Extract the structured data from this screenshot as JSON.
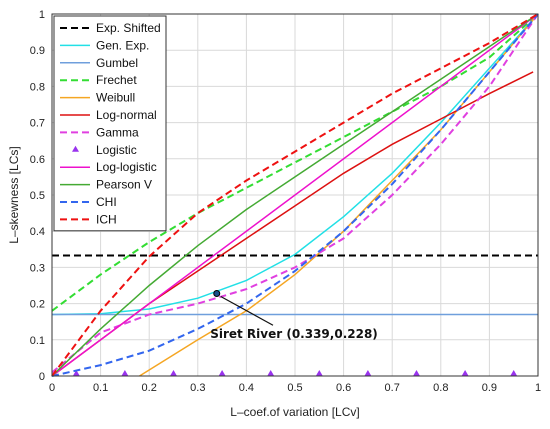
{
  "chart_data": {
    "type": "line",
    "xlabel": "L–coef.of variation [LCv]",
    "ylabel": "L–skewness [LCs]",
    "xlim": [
      0,
      1
    ],
    "ylim": [
      0,
      1
    ],
    "x_ticks": [
      "0",
      "0.1",
      "0.2",
      "0.3",
      "0.4",
      "0.5",
      "0.6",
      "0.7",
      "0.8",
      "0.9",
      "1"
    ],
    "y_ticks": [
      "0",
      "0.1",
      "0.2",
      "0.3",
      "0.4",
      "0.5",
      "0.6",
      "0.7",
      "0.8",
      "0.9",
      "1"
    ],
    "grid": true,
    "legend_position": "top-left",
    "series": [
      {
        "name": "Exp. Shifted",
        "color": "#000000",
        "dash": "dashed",
        "x": [
          0,
          1
        ],
        "y": [
          0.333,
          0.333
        ]
      },
      {
        "name": "Gen. Exp.",
        "color": "#22e0e6",
        "dash": "solid",
        "x": [
          0,
          0.1,
          0.2,
          0.3,
          0.4,
          0.5,
          0.6,
          0.7,
          0.8,
          0.9,
          1.0
        ],
        "y": [
          0.17,
          0.172,
          0.185,
          0.215,
          0.264,
          0.336,
          0.44,
          0.56,
          0.7,
          0.85,
          1.0
        ]
      },
      {
        "name": "Gumbel",
        "color": "#6f9fdc",
        "dash": "solid",
        "x": [
          0,
          1
        ],
        "y": [
          0.17,
          0.17
        ]
      },
      {
        "name": "Frechet",
        "color": "#33dd33",
        "dash": "dashed",
        "x": [
          0,
          0.1,
          0.2,
          0.3,
          0.4,
          0.5,
          0.6,
          0.7,
          0.8,
          0.9,
          1.0
        ],
        "y": [
          0.18,
          0.28,
          0.37,
          0.45,
          0.52,
          0.59,
          0.66,
          0.73,
          0.8,
          0.88,
          1.0
        ]
      },
      {
        "name": "Weibull",
        "color": "#f5a623",
        "dash": "solid",
        "x": [
          0.18,
          0.3,
          0.4,
          0.5,
          0.6,
          0.7,
          0.8,
          0.9,
          1.0
        ],
        "y": [
          0.0,
          0.1,
          0.18,
          0.28,
          0.4,
          0.54,
          0.68,
          0.84,
          1.0
        ]
      },
      {
        "name": "Log-normal",
        "color": "#dd1111",
        "dash": "solid",
        "x": [
          0,
          0.1,
          0.2,
          0.3,
          0.4,
          0.5,
          0.6,
          0.7,
          0.8,
          0.9,
          0.99
        ],
        "y": [
          0.0,
          0.1,
          0.2,
          0.29,
          0.38,
          0.47,
          0.56,
          0.64,
          0.71,
          0.78,
          0.84
        ]
      },
      {
        "name": "Gamma",
        "color": "#e040e0",
        "dash": "dashed",
        "x": [
          0,
          0.1,
          0.2,
          0.3,
          0.4,
          0.5,
          0.6,
          0.7,
          0.8,
          0.9,
          1.0
        ],
        "y": [
          0.01,
          0.12,
          0.17,
          0.2,
          0.24,
          0.3,
          0.38,
          0.5,
          0.64,
          0.8,
          1.0
        ]
      },
      {
        "name": "Logistic",
        "color": "#9933ee",
        "dash": "markers",
        "x": [
          0.05,
          0.15,
          0.25,
          0.35,
          0.45,
          0.55,
          0.65,
          0.75,
          0.85,
          0.95
        ],
        "y": [
          0,
          0,
          0,
          0,
          0,
          0,
          0,
          0,
          0,
          0
        ]
      },
      {
        "name": "Log-logistic",
        "color": "#ee11cc",
        "dash": "solid",
        "x": [
          0,
          1
        ],
        "y": [
          0.0,
          1.0
        ]
      },
      {
        "name": "Pearson V",
        "color": "#44aa33",
        "dash": "solid",
        "x": [
          0,
          0.1,
          0.2,
          0.3,
          0.4,
          0.5,
          0.6,
          0.7,
          0.8,
          0.9,
          1.0
        ],
        "y": [
          0.0,
          0.13,
          0.25,
          0.36,
          0.46,
          0.55,
          0.64,
          0.73,
          0.82,
          0.91,
          1.0
        ]
      },
      {
        "name": "CHI",
        "color": "#3366ee",
        "dash": "dashed",
        "x": [
          0,
          0.1,
          0.2,
          0.3,
          0.4,
          0.5,
          0.6,
          0.7,
          0.8,
          0.9,
          1.0
        ],
        "y": [
          0.0,
          0.03,
          0.07,
          0.13,
          0.2,
          0.29,
          0.4,
          0.53,
          0.68,
          0.84,
          1.0
        ]
      },
      {
        "name": "ICH",
        "color": "#ee1111",
        "dash": "dashed",
        "x": [
          0,
          0.1,
          0.2,
          0.3,
          0.4,
          0.5,
          0.6,
          0.7,
          0.8,
          0.9,
          1.0
        ],
        "y": [
          0.0,
          0.18,
          0.33,
          0.45,
          0.54,
          0.62,
          0.7,
          0.78,
          0.85,
          0.92,
          1.0
        ]
      }
    ],
    "annotation": {
      "text": "Siret River (0.339,0.228)",
      "x": 0.339,
      "y": 0.228,
      "label_anchor_x": 0.5,
      "label_anchor_y": 0.085
    }
  }
}
